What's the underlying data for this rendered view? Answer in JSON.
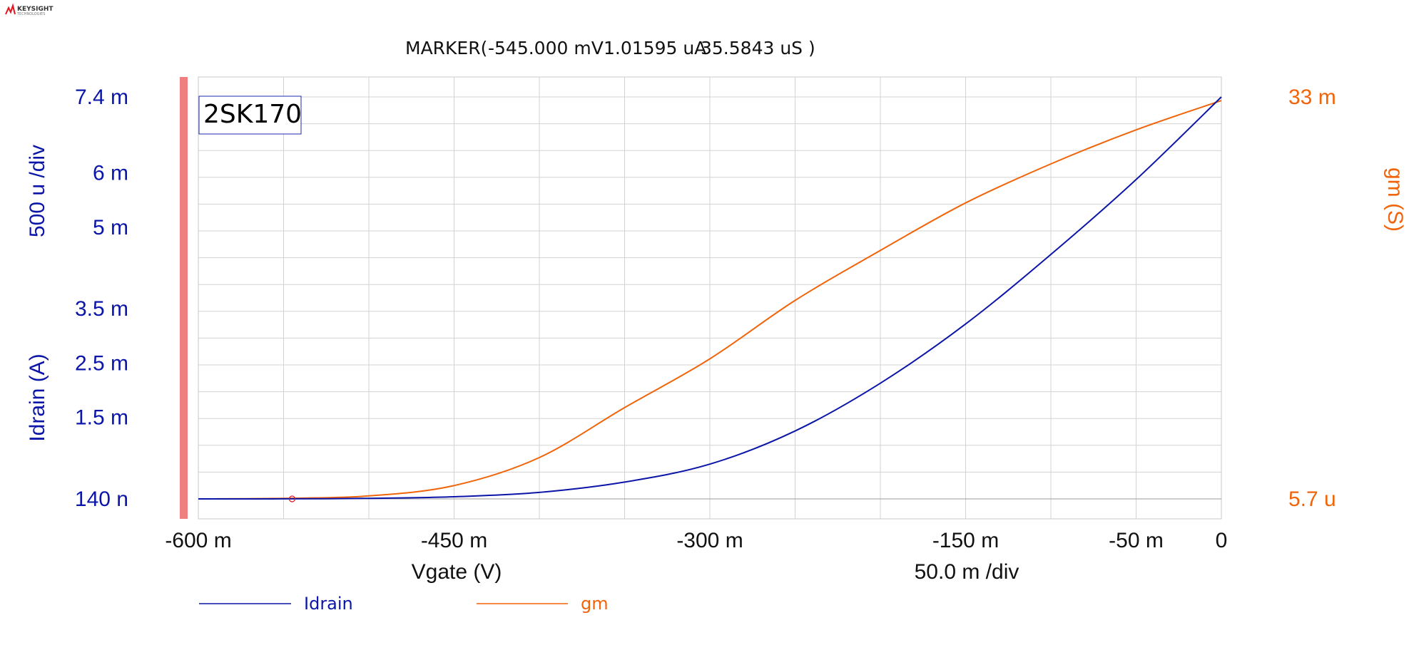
{
  "brand": {
    "name": "KEYSIGHT",
    "sub": "TECHNOLOGIES",
    "accent": "#e3141b"
  },
  "marker": {
    "label": "MARKER(",
    "v": "-545.000 mV",
    "i": "1.01595 uA",
    "g": "35.5843 uS )",
    "x": -0.545
  },
  "colors": {
    "idrain": "#0b16a8",
    "gm": "#f0640a",
    "grid": "#d3d3d3",
    "marker_bar": "#f08080"
  },
  "chart_data": {
    "type": "line",
    "title": "2SK170",
    "xlabel": "Vgate (V)",
    "xdiv": "50.0 m /div",
    "xlim": [
      -0.6,
      0
    ],
    "x_ticks": [
      {
        "value": -0.6,
        "label": "-600 m"
      },
      {
        "value": -0.45,
        "label": "-450 m"
      },
      {
        "value": -0.3,
        "label": "-300 m"
      },
      {
        "value": -0.15,
        "label": "-150 m"
      },
      {
        "value": -0.05,
        "label": "-50 m"
      },
      {
        "value": 0,
        "label": "0"
      }
    ],
    "y_left": {
      "label": "Idrain (A)",
      "div": "500 u /div",
      "lim": [
        1.4e-07,
        0.0074
      ],
      "ticks": [
        {
          "value": 0.0074,
          "label": "7.4 m"
        },
        {
          "value": 0.006,
          "label": "6 m"
        },
        {
          "value": 0.005,
          "label": "5 m"
        },
        {
          "value": 0.0035,
          "label": "3.5 m"
        },
        {
          "value": 0.0025,
          "label": "2.5 m"
        },
        {
          "value": 0.0015,
          "label": "1.5 m"
        },
        {
          "value": 1.4e-07,
          "label": "140 n"
        }
      ]
    },
    "y_right": {
      "label": "gm (S)",
      "lim": [
        5.7e-06,
        0.033
      ],
      "ticks": [
        {
          "value": 0.033,
          "label": "33 m"
        },
        {
          "value": 5.7e-06,
          "label": "5.7 u"
        }
      ]
    },
    "grid": true,
    "legend_position": "bottom-left",
    "series": [
      {
        "name": "Idrain",
        "axis": "left",
        "x": [
          -0.6,
          -0.55,
          -0.5,
          -0.45,
          -0.4,
          -0.35,
          -0.3,
          -0.25,
          -0.2,
          -0.15,
          -0.1,
          -0.05,
          0
        ],
        "y": [
          3e-07,
          1e-06,
          1e-05,
          4e-05,
          0.00012,
          0.00031,
          0.00064,
          0.00125,
          0.00213,
          0.00322,
          0.0045,
          0.00588,
          0.0074
        ]
      },
      {
        "name": "gm",
        "axis": "right",
        "x": [
          -0.6,
          -0.55,
          -0.5,
          -0.45,
          -0.4,
          -0.35,
          -0.3,
          -0.25,
          -0.2,
          -0.15,
          -0.1,
          -0.05,
          0
        ],
        "y": [
          5.7e-06,
          5e-05,
          0.00025,
          0.0011,
          0.0034,
          0.0075,
          0.0115,
          0.0163,
          0.0204,
          0.0243,
          0.0275,
          0.0303,
          0.0327
        ]
      }
    ]
  }
}
